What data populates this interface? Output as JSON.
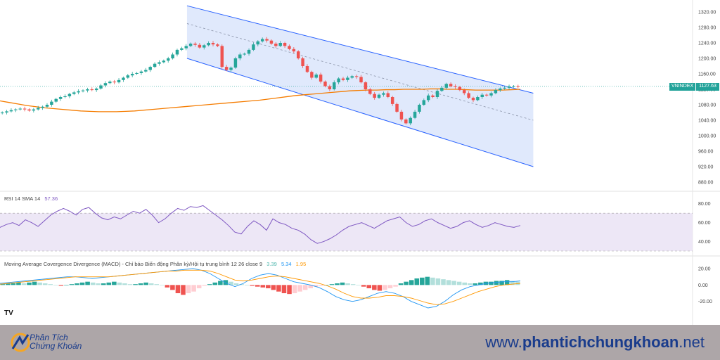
{
  "chart_data": [
    {
      "type": "candlestick",
      "symbol": "VNINDEX",
      "last_price": "1127.63",
      "y_ticks": [
        "1320.00",
        "1280.00",
        "1240.00",
        "1200.00",
        "1160.00",
        "1120.00",
        "1080.00",
        "1040.00",
        "1000.00",
        "960.00",
        "920.00",
        "880.00"
      ],
      "ylim": [
        860,
        1340
      ],
      "series": [
        {
          "close_path": [
            1060,
            1063,
            1066,
            1068,
            1070,
            1068,
            1065,
            1068,
            1072,
            1075,
            1080,
            1088,
            1095,
            1100,
            1102,
            1108,
            1112,
            1115,
            1117,
            1120,
            1118,
            1122,
            1130,
            1136,
            1140,
            1138,
            1144,
            1150,
            1156,
            1160,
            1162,
            1166,
            1170,
            1178,
            1186,
            1190,
            1194,
            1200,
            1210,
            1222,
            1226,
            1232,
            1238,
            1235,
            1228,
            1234,
            1240,
            1236,
            1232,
            1178,
            1170,
            1176,
            1200,
            1210,
            1212,
            1222,
            1236,
            1244,
            1250,
            1246,
            1238,
            1232,
            1240,
            1232,
            1224,
            1218,
            1200,
            1180,
            1165,
            1150,
            1158,
            1140,
            1128,
            1120,
            1138,
            1148,
            1144,
            1150,
            1154,
            1152,
            1138,
            1120,
            1108,
            1098,
            1106,
            1110,
            1100,
            1082,
            1062,
            1042,
            1032,
            1046,
            1062,
            1080,
            1092,
            1104,
            1100,
            1116,
            1124,
            1134,
            1128,
            1126,
            1118,
            1110,
            1098,
            1092,
            1100,
            1106,
            1104,
            1110,
            1118,
            1122,
            1124,
            1127,
            1128,
            1127.63
          ]
        },
        {
          "name": "MA",
          "values": [
            1090,
            1086,
            1082,
            1078,
            1075,
            1072,
            1070,
            1068,
            1066,
            1064,
            1063,
            1062,
            1062,
            1062,
            1063,
            1064,
            1066,
            1068,
            1070,
            1072,
            1074,
            1076,
            1078,
            1080,
            1082,
            1084,
            1086,
            1088,
            1090,
            1092,
            1095,
            1098,
            1101,
            1104,
            1106,
            1108,
            1110,
            1112,
            1114,
            1116,
            1117,
            1118,
            1118,
            1119,
            1119,
            1120,
            1120,
            1120,
            1121,
            1121,
            1120,
            1120,
            1119,
            1118,
            1118,
            1118,
            1118,
            1119,
            1120
          ]
        }
      ],
      "channel": {
        "upper": [
          1336,
          1110
        ],
        "mid": [
          1290,
          1040
        ],
        "lower": [
          1200,
          920
        ],
        "x_range_frac": [
          0.27,
          0.77
        ]
      }
    },
    {
      "type": "line",
      "title": "RSI 14 SMA 14",
      "value": "57.36",
      "y_ticks": [
        "80.00",
        "60.00",
        "40.00"
      ],
      "ylim": [
        30,
        85
      ],
      "band": [
        30,
        70
      ],
      "series": [
        {
          "name": "RSI",
          "values": [
            55,
            58,
            60,
            57,
            63,
            60,
            56,
            62,
            68,
            72,
            75,
            72,
            68,
            74,
            76,
            70,
            65,
            63,
            66,
            64,
            68,
            72,
            70,
            74,
            68,
            60,
            64,
            70,
            75,
            73,
            77,
            76,
            78,
            73,
            68,
            63,
            57,
            50,
            48,
            56,
            62,
            58,
            52,
            64,
            60,
            58,
            54,
            52,
            48,
            42,
            38,
            40,
            43,
            47,
            52,
            56,
            58,
            60,
            57,
            54,
            58,
            62,
            64,
            66,
            60,
            56,
            58,
            62,
            64,
            60,
            57,
            54,
            56,
            60,
            62,
            58,
            55,
            57,
            60,
            58,
            56,
            55,
            57
          ]
        }
      ]
    },
    {
      "type": "bar+line",
      "title": "Moving Average Covergence Divergence (MACD) - Chỉ báo Biến động Phân kỳ/Hội tụ trung bình 12 26 close 9",
      "values_label": [
        "3.39",
        "5.34",
        "1.95"
      ],
      "y_ticks": [
        "20.00",
        "0.00",
        "-20.00"
      ],
      "ylim": [
        -34,
        26
      ],
      "series": [
        {
          "name": "Histogram",
          "values": [
            1,
            2,
            2,
            3,
            2,
            3,
            4,
            3,
            2,
            1,
            0,
            -1,
            0,
            1,
            2,
            3,
            4,
            3,
            2,
            2,
            3,
            4,
            3,
            2,
            1,
            1,
            2,
            3,
            2,
            1,
            0,
            -3,
            -6,
            -10,
            -12,
            -10,
            -8,
            -4,
            -1,
            1,
            3,
            5,
            6,
            4,
            2,
            1,
            0,
            -1,
            -2,
            -3,
            -4,
            -6,
            -8,
            -10,
            -11,
            -10,
            -8,
            -6,
            -4,
            -2,
            -1,
            0,
            1,
            2,
            3,
            2,
            1,
            0,
            -2,
            -4,
            -6,
            -7,
            -6,
            -4,
            -2,
            2,
            4,
            6,
            8,
            9,
            10,
            9,
            8,
            7,
            6,
            5,
            4,
            3,
            2,
            2,
            3,
            4,
            4,
            5,
            5,
            6,
            5,
            4
          ]
        },
        {
          "name": "MACD",
          "values": [
            2,
            3,
            4,
            5,
            6,
            7,
            8,
            9,
            10,
            10,
            9,
            8,
            9,
            10,
            11,
            12,
            13,
            14,
            15,
            16,
            17,
            18,
            19,
            20,
            18,
            14,
            8,
            2,
            -2,
            2,
            8,
            12,
            14,
            12,
            8,
            4,
            2,
            0,
            -3,
            -8,
            -14,
            -18,
            -20,
            -18,
            -14,
            -10,
            -8,
            -10,
            -14,
            -20,
            -24,
            -28,
            -26,
            -20,
            -12,
            -6,
            -2,
            0,
            2,
            3,
            4,
            4,
            5
          ]
        },
        {
          "name": "Signal",
          "values": [
            1,
            2,
            3,
            4,
            5,
            6,
            7,
            8,
            9,
            10,
            10,
            10,
            10,
            10,
            11,
            12,
            13,
            14,
            15,
            16,
            17,
            17,
            18,
            18,
            18,
            17,
            14,
            10,
            6,
            5,
            6,
            8,
            10,
            11,
            10,
            8,
            6,
            4,
            2,
            -1,
            -5,
            -10,
            -14,
            -16,
            -16,
            -15,
            -13,
            -13,
            -14,
            -16,
            -19,
            -22,
            -24,
            -23,
            -20,
            -16,
            -12,
            -8,
            -5,
            -2,
            0,
            1,
            2
          ]
        }
      ]
    }
  ],
  "footer": {
    "brand_line1": "Phân Tích",
    "brand_line2": "Chứng Khoán",
    "url_prefix": "www.",
    "url_bold": "phantichchungkhoan",
    "url_suffix": ".net"
  },
  "watermark": "TV",
  "colors": {
    "up": "#26a69a",
    "down": "#ef5350",
    "ma": "#f57c00",
    "channel_fill": "#d6e2fb",
    "channel_line": "#2962ff",
    "rsi": "#7e57c2",
    "rsi_band": "#ede7f6",
    "macd": "#2196f3",
    "signal": "#ff9800",
    "price_line": "#22a39a"
  }
}
